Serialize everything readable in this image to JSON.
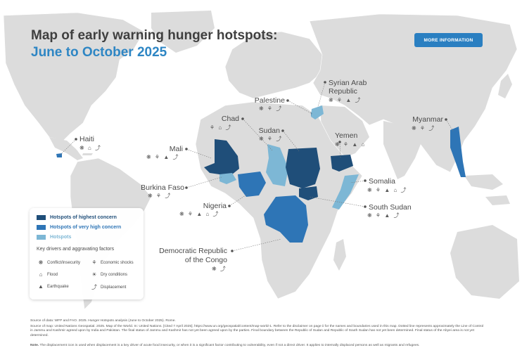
{
  "title": "Map of early warning hunger hotspots:",
  "subtitle": "June to October 2025",
  "more_button": "MORE INFORMATION",
  "colors": {
    "highest": "#1f4e79",
    "very_high": "#2e75b6",
    "hotspot": "#7db7d5",
    "land": "#dcdcdc",
    "sea": "#ffffff"
  },
  "hotspots": {
    "haiti": {
      "name": "Haiti",
      "icons": "❋ ⌂ ⤴"
    },
    "mali": {
      "name": "Mali",
      "icons": "❋ ⚘ ▲ ⤴"
    },
    "burkina": {
      "name": "Burkina Faso",
      "icons": "❋ ⚘ ⤴"
    },
    "nigeria": {
      "name": "Nigeria",
      "icons": "❋ ⚘ ▲ ⌂ ⤴"
    },
    "chad": {
      "name": "Chad",
      "icons": "⚘ ⌂ ⤴"
    },
    "sudan": {
      "name": "Sudan",
      "icons": "❋ ⚘ ⤴"
    },
    "palestine": {
      "name": "Palestine",
      "icons": "❋ ⚘ ⤴"
    },
    "syria": {
      "name": "Syrian Arab\nRepublic",
      "line1": "Syrian Arab",
      "line2": "Republic",
      "icons": "❋ ⚘ ▲ ⤴"
    },
    "yemen": {
      "name": "Yemen",
      "icons": "❋ ⚘ ▲ ⌂"
    },
    "somalia": {
      "name": "Somalia",
      "icons": "❋ ⚘ ▲ ⌂ ⤴"
    },
    "south_sudan": {
      "name": "South Sudan",
      "icons": "❋ ⚘ ▲ ⤴"
    },
    "myanmar": {
      "name": "Myanmar",
      "icons": "❋ ⚘ ⤴"
    },
    "drc": {
      "line1": "Democratic Republic",
      "line2": "of the Congo",
      "icons": "❋ ⤴"
    }
  },
  "legend": {
    "highest": "Hotspots of highest concern",
    "very_high": "Hotspots of very high concern",
    "hotspot": "Hotspots",
    "drivers_heading": "Key drivers and aggravating factors",
    "conflict": "Conflict/insecurity",
    "economic": "Economic shocks",
    "flood": "Flood",
    "dry": "Dry conditions",
    "earthquake": "Earthquake",
    "displacement": "Displacement"
  },
  "footer": {
    "source_data": "Source of data: WFP and FAO. 2025. Hunger Hotspots analysis (June to October 2025). Rome.",
    "source_map": "Source of map: United Nations Geospatial. 2025. Map of the World. In: United Nations. [Cited 7 April 2025]. https://www.un.org/geospatial/content/map-world-1. Refer to the disclaimer on page ii for the names and boundaries used in this map. Dotted line represents approximately the Line of Control in Jammu and Kashmir agreed upon by India and Pakistan. The final status of Jammu and Kashmir has not yet been agreed upon by the parties. Final boundary between the Republic of Sudan and Republic of South Sudan has not yet been determined. Final status of the Abyei area is not yet determined.",
    "note_label": "Note.",
    "note_text": "The displacement icon is used when displacement is a key driver of acute food insecurity, or when it is a significant factor contributing to vulnerability, even if not a direct driver. It applies to internally displaced persons as well as migrants and refugees."
  }
}
